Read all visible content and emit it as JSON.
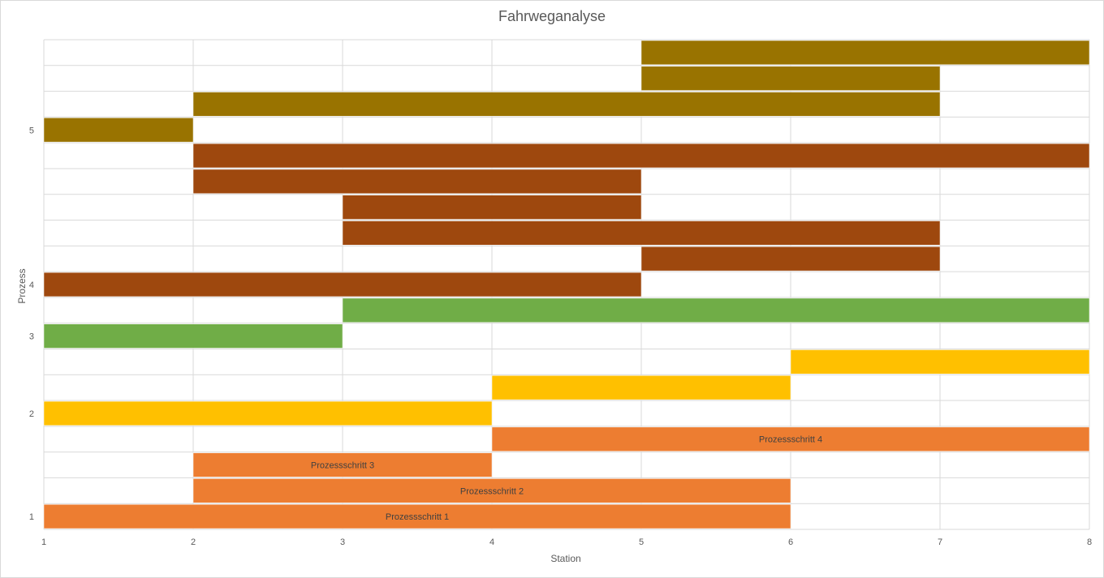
{
  "chart_data": {
    "type": "bar",
    "orientation": "horizontal-floating",
    "title": "Fahrweganalyse",
    "xlabel": "Station",
    "ylabel": "Prozess",
    "xlim": [
      1,
      8
    ],
    "x_ticks": [
      "1",
      "2",
      "3",
      "4",
      "5",
      "6",
      "7",
      "8"
    ],
    "y_ticks": [
      {
        "label": "1",
        "row": 0
      },
      {
        "label": "2",
        "row": 4
      },
      {
        "label": "3",
        "row": 7
      },
      {
        "label": "4",
        "row": 9
      },
      {
        "label": "5",
        "row": 15
      }
    ],
    "rows_total": 19,
    "grid": true,
    "legend": "none",
    "series": [
      {
        "process": "1",
        "color": "#ED7D31",
        "segments": [
          {
            "start": 1,
            "end": 6,
            "label": "Prozessschritt 1"
          },
          {
            "start": 2,
            "end": 6,
            "label": "Prozessschritt 2"
          },
          {
            "start": 2,
            "end": 4,
            "label": "Prozessschritt 3"
          },
          {
            "start": 4,
            "end": 8,
            "label": "Prozessschritt 4"
          }
        ]
      },
      {
        "process": "2",
        "color": "#FFC000",
        "segments": [
          {
            "start": 1,
            "end": 4,
            "label": ""
          },
          {
            "start": 4,
            "end": 6,
            "label": ""
          },
          {
            "start": 6,
            "end": 8,
            "label": ""
          }
        ]
      },
      {
        "process": "3",
        "color": "#70AD47",
        "segments": [
          {
            "start": 1,
            "end": 3,
            "label": ""
          },
          {
            "start": 3,
            "end": 8,
            "label": ""
          }
        ]
      },
      {
        "process": "4",
        "color": "#9E480E",
        "segments": [
          {
            "start": 1,
            "end": 5,
            "label": ""
          },
          {
            "start": 5,
            "end": 7,
            "label": ""
          },
          {
            "start": 3,
            "end": 7,
            "label": ""
          },
          {
            "start": 3,
            "end": 5,
            "label": ""
          },
          {
            "start": 2,
            "end": 5,
            "label": ""
          },
          {
            "start": 2,
            "end": 8,
            "label": ""
          }
        ]
      },
      {
        "process": "5",
        "color": "#997300",
        "segments": [
          {
            "start": 1,
            "end": 2,
            "label": ""
          },
          {
            "start": 2,
            "end": 7,
            "label": ""
          },
          {
            "start": 5,
            "end": 7,
            "label": ""
          },
          {
            "start": 5,
            "end": 8,
            "label": ""
          }
        ]
      }
    ]
  }
}
